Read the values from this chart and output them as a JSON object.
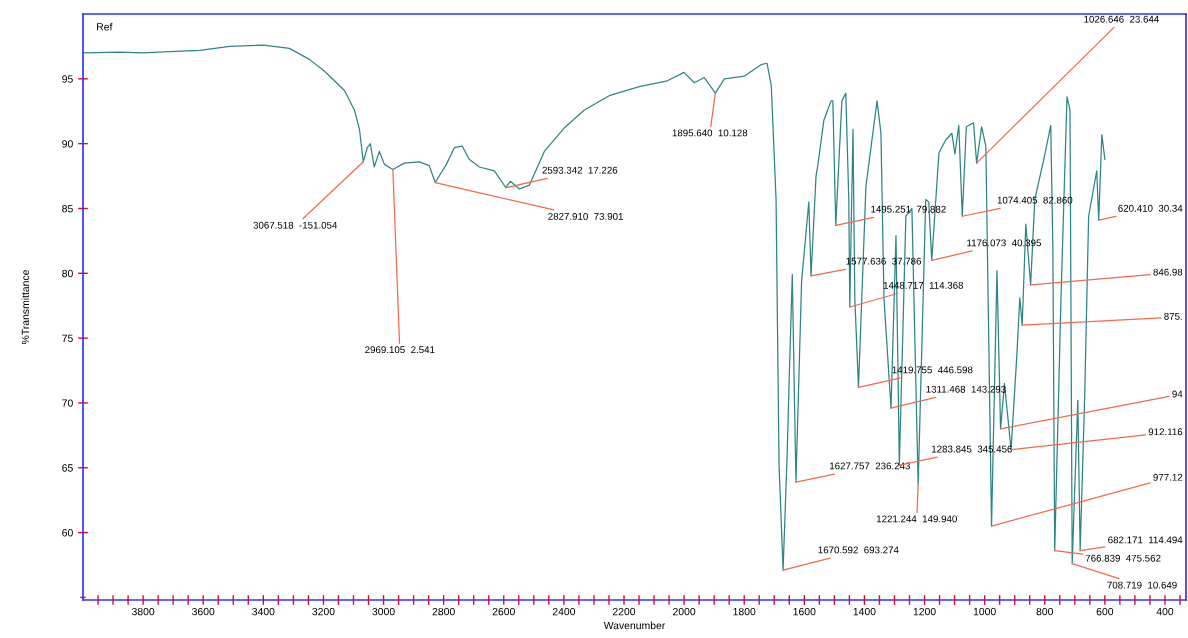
{
  "chart_data": {
    "type": "line",
    "xlabel": "Wavenumber",
    "ylabel": "%Transmittance",
    "series": [
      {
        "color": "#2f8585",
        "x": [
          4000,
          3878,
          3800,
          3712,
          3612,
          3512,
          3400,
          3313,
          3247,
          3197,
          3130,
          3097,
          3080,
          3067.5,
          3054,
          3044,
          3031,
          3014,
          2997,
          2969,
          2931,
          2881,
          2848,
          2828,
          2791,
          2764,
          2738,
          2715,
          2681,
          2631,
          2593,
          2578,
          2548,
          2515,
          2465,
          2399,
          2332,
          2249,
          2149,
          2056,
          2000,
          1966,
          1933,
          1896,
          1866,
          1800,
          1743,
          1724,
          1710,
          1694,
          1684,
          1670.6,
          1657,
          1650,
          1640,
          1633,
          1627.8,
          1609,
          1585,
          1577.6,
          1561,
          1554,
          1535,
          1511,
          1505,
          1495.3,
          1475,
          1462,
          1452,
          1448.7,
          1438,
          1432,
          1419.8,
          1395,
          1358,
          1345,
          1335,
          1311.5,
          1295,
          1283.8,
          1262,
          1242,
          1221.2,
          1209,
          1196,
          1186,
          1176,
          1152,
          1129,
          1109,
          1099,
          1086,
          1074.4,
          1061,
          1037,
          1026.6,
          1010,
          996,
          977,
          959,
          947,
          934,
          912.1,
          893,
          883,
          875,
          863,
          847,
          833,
          803,
          780,
          773,
          766.8,
          746,
          726,
          716,
          708.7,
          690,
          682.2,
          667,
          654,
          627,
          620.4,
          610,
          600
        ],
        "values": [
          97.0,
          97.05,
          97.0,
          97.1,
          97.2,
          97.5,
          97.6,
          97.35,
          96.5,
          95.6,
          94.1,
          92.6,
          91.1,
          88.6,
          89.7,
          90.0,
          88.2,
          89.4,
          88.4,
          88.0,
          88.5,
          88.6,
          88.3,
          87.0,
          88.4,
          89.7,
          89.8,
          88.8,
          88.2,
          87.9,
          86.6,
          87.1,
          86.5,
          86.8,
          89.4,
          91.2,
          92.6,
          93.7,
          94.4,
          94.85,
          95.5,
          94.7,
          95.1,
          93.9,
          95.0,
          95.2,
          96.1,
          96.2,
          94.5,
          85.7,
          65.2,
          57.1,
          66.1,
          72.1,
          79.9,
          70.6,
          63.9,
          79.4,
          85.5,
          79.8,
          87.5,
          88.5,
          91.8,
          93.3,
          93.3,
          83.7,
          93.3,
          93.9,
          85.7,
          77.4,
          91.1,
          78.1,
          71.2,
          86.7,
          93.3,
          90.8,
          78.1,
          69.6,
          82.9,
          65.2,
          84.4,
          85.0,
          63.7,
          74.3,
          85.7,
          85.5,
          81.0,
          89.3,
          90.3,
          90.8,
          89.2,
          91.4,
          84.4,
          91.3,
          91.6,
          88.5,
          91.3,
          89.8,
          60.5,
          80.2,
          68.0,
          71.5,
          66.4,
          73.6,
          78.1,
          76.0,
          83.8,
          79.1,
          85.7,
          88.8,
          91.4,
          81.9,
          58.6,
          78.1,
          93.6,
          92.6,
          57.6,
          70.2,
          58.6,
          70.6,
          84.4,
          87.9,
          84.1,
          90.7,
          88.8
        ]
      }
    ],
    "xlim": [
      4000,
      330
    ],
    "ylim": [
      54.8,
      100
    ],
    "xticks": [
      {
        "value": 3950,
        "label": null
      },
      {
        "value": 3900,
        "label": null
      },
      {
        "value": 3850,
        "label": null
      },
      3800,
      {
        "value": 3750,
        "label": null
      },
      {
        "value": 3700,
        "label": null
      },
      {
        "value": 3650,
        "label": null
      },
      3600,
      {
        "value": 3550,
        "label": null
      },
      {
        "value": 3500,
        "label": null
      },
      {
        "value": 3450,
        "label": null
      },
      3400,
      {
        "value": 3350,
        "label": null
      },
      {
        "value": 3300,
        "label": null
      },
      {
        "value": 3250,
        "label": null
      },
      3200,
      {
        "value": 3150,
        "label": null
      },
      {
        "value": 3100,
        "label": null
      },
      {
        "value": 3050,
        "label": null
      },
      3000,
      {
        "value": 2950,
        "label": null
      },
      {
        "value": 2900,
        "label": null
      },
      {
        "value": 2850,
        "label": null
      },
      2800,
      {
        "value": 2750,
        "label": null
      },
      {
        "value": 2700,
        "label": null
      },
      {
        "value": 2650,
        "label": null
      },
      2600,
      {
        "value": 2550,
        "label": null
      },
      {
        "value": 2500,
        "label": null
      },
      {
        "value": 2450,
        "label": null
      },
      2400,
      {
        "value": 2350,
        "label": null
      },
      {
        "value": 2300,
        "label": null
      },
      {
        "value": 2250,
        "label": null
      },
      2200,
      {
        "value": 2150,
        "label": null
      },
      {
        "value": 2100,
        "label": null
      },
      {
        "value": 2050,
        "label": null
      },
      2000,
      {
        "value": 1950,
        "label": null
      },
      {
        "value": 1900,
        "label": null
      },
      {
        "value": 1850,
        "label": null
      },
      1800,
      {
        "value": 1750,
        "label": null
      },
      {
        "value": 1700,
        "label": null
      },
      {
        "value": 1650,
        "label": null
      },
      1600,
      {
        "value": 1550,
        "label": null
      },
      {
        "value": 1500,
        "label": null
      },
      {
        "value": 1450,
        "label": null
      },
      1400,
      {
        "value": 1350,
        "label": null
      },
      {
        "value": 1300,
        "label": null
      },
      {
        "value": 1250,
        "label": null
      },
      1200,
      {
        "value": 1150,
        "label": null
      },
      {
        "value": 1100,
        "label": null
      },
      {
        "value": 1050,
        "label": null
      },
      1000,
      {
        "value": 950,
        "label": null
      },
      {
        "value": 900,
        "label": null
      },
      {
        "value": 850,
        "label": null
      },
      800,
      {
        "value": 750,
        "label": null
      },
      {
        "value": 700,
        "label": null
      },
      {
        "value": 650,
        "label": null
      },
      600,
      {
        "value": 550,
        "label": null
      },
      {
        "value": 500,
        "label": null
      },
      {
        "value": 450,
        "label": null
      },
      400,
      {
        "value": 350,
        "label": null
      }
    ],
    "yticks": [
      {
        "value": 55,
        "label": null
      },
      60,
      65,
      70,
      75,
      80,
      85,
      90,
      95
    ],
    "annotations": [
      "Ref",
      {
        "text": "3067.518  -151.054",
        "x": 3067.5,
        "y": 88.6
      },
      {
        "text": "2969.105  2.541",
        "x": 2969,
        "y": 88.0
      },
      {
        "text": "2827.910  73.901",
        "x": 2828,
        "y": 87.0
      },
      {
        "text": "2593.342  17.226",
        "x": 2593,
        "y": 86.6
      },
      {
        "text": "1895.640  10.128",
        "x": 1896,
        "y": 93.9
      },
      {
        "text": "1670.592  693.274",
        "x": 1670.6,
        "y": 57.1
      },
      {
        "text": "1627.757  236.243",
        "x": 1627.8,
        "y": 63.9
      },
      {
        "text": "1577.636  37.786",
        "x": 1577.6,
        "y": 79.8
      },
      {
        "text": "1495.251  79.882",
        "x": 1495.3,
        "y": 83.7
      },
      {
        "text": "1448.717  114.368",
        "x": 1448.7,
        "y": 77.4
      },
      {
        "text": "1419.755  446.598",
        "x": 1419.8,
        "y": 71.2
      },
      {
        "text": "1311.468  143.293",
        "x": 1311.5,
        "y": 69.6
      },
      {
        "text": "1283.845  345.456",
        "x": 1283.8,
        "y": 65.2
      },
      {
        "text": "1221.244  149.940",
        "x": 1221.2,
        "y": 63.7
      },
      {
        "text": "1176.073  40.395",
        "x": 1176,
        "y": 81.0
      },
      {
        "text": "1074.405  82.860",
        "x": 1074.4,
        "y": 84.4
      },
      {
        "text": "1026.646  23.644",
        "x": 1026.6,
        "y": 88.5
      },
      {
        "text": "977.12",
        "x": 977,
        "y": 60.5
      },
      {
        "text": "94",
        "x": 947,
        "y": 68.0
      },
      {
        "text": "912.116",
        "x": 912.1,
        "y": 66.4
      },
      {
        "text": "875.",
        "x": 875,
        "y": 76.0
      },
      {
        "text": "846.98",
        "x": 847,
        "y": 79.1
      },
      {
        "text": "766.839  475.562",
        "x": 766.8,
        "y": 58.6
      },
      {
        "text": "708.719  10.649",
        "x": 708.7,
        "y": 57.6
      },
      {
        "text": "682.171  114.494",
        "x": 682.2,
        "y": 58.6
      },
      {
        "text": "620.410  30.34",
        "x": 620.4,
        "y": 84.1
      }
    ]
  }
}
